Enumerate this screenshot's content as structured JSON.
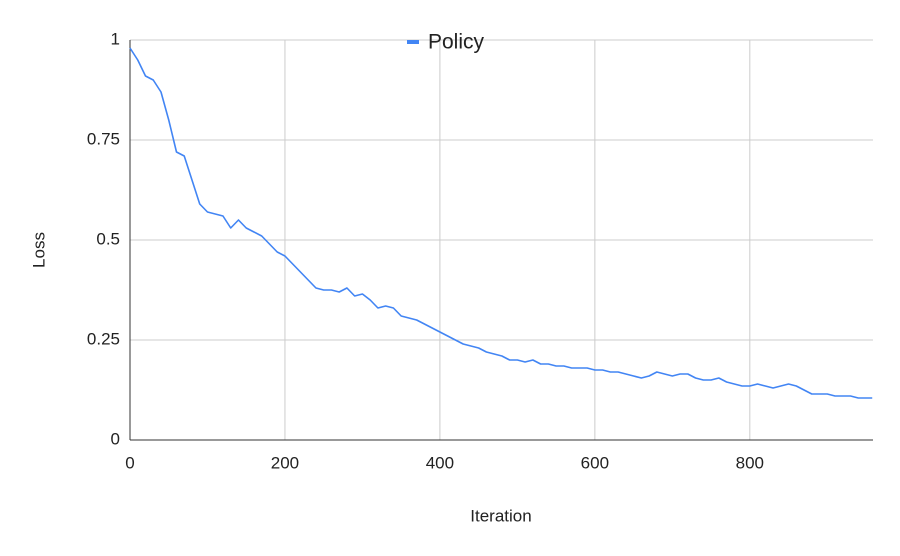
{
  "chart_data": {
    "type": "line",
    "x_label": "Iteration",
    "y_label": "Loss",
    "x": [
      0,
      10,
      20,
      30,
      40,
      50,
      60,
      70,
      80,
      90,
      100,
      110,
      120,
      130,
      140,
      150,
      160,
      170,
      180,
      190,
      200,
      210,
      220,
      230,
      240,
      250,
      260,
      270,
      280,
      290,
      300,
      310,
      320,
      330,
      340,
      350,
      360,
      370,
      380,
      390,
      400,
      410,
      420,
      430,
      440,
      450,
      460,
      470,
      480,
      490,
      500,
      510,
      520,
      530,
      540,
      550,
      560,
      570,
      580,
      590,
      600,
      610,
      620,
      630,
      640,
      650,
      660,
      670,
      680,
      690,
      700,
      710,
      720,
      730,
      740,
      750,
      760,
      770,
      780,
      790,
      800,
      810,
      820,
      830,
      840,
      850,
      860,
      870,
      880,
      890,
      900,
      910,
      920,
      930,
      940,
      950,
      958
    ],
    "series": [
      {
        "name": "Policy",
        "color": "#4285f4",
        "values": [
          0.98,
          0.95,
          0.91,
          0.9,
          0.87,
          0.8,
          0.72,
          0.71,
          0.65,
          0.59,
          0.57,
          0.565,
          0.56,
          0.53,
          0.55,
          0.53,
          0.52,
          0.51,
          0.49,
          0.47,
          0.46,
          0.44,
          0.42,
          0.4,
          0.38,
          0.375,
          0.375,
          0.37,
          0.38,
          0.36,
          0.365,
          0.35,
          0.33,
          0.335,
          0.33,
          0.31,
          0.305,
          0.3,
          0.29,
          0.28,
          0.27,
          0.26,
          0.25,
          0.24,
          0.235,
          0.23,
          0.22,
          0.215,
          0.21,
          0.2,
          0.2,
          0.195,
          0.2,
          0.19,
          0.19,
          0.185,
          0.185,
          0.18,
          0.18,
          0.18,
          0.175,
          0.175,
          0.17,
          0.17,
          0.165,
          0.16,
          0.155,
          0.16,
          0.17,
          0.165,
          0.16,
          0.165,
          0.165,
          0.155,
          0.15,
          0.15,
          0.155,
          0.145,
          0.14,
          0.135,
          0.135,
          0.14,
          0.135,
          0.13,
          0.135,
          0.14,
          0.135,
          0.125,
          0.115,
          0.115,
          0.115,
          0.11,
          0.11,
          0.11,
          0.105,
          0.105,
          0.105
        ]
      }
    ],
    "xlim": [
      0,
      959
    ],
    "ylim": [
      0,
      1
    ],
    "xticks": [
      0,
      200,
      400,
      600,
      800
    ],
    "yticks": [
      0,
      0.25,
      0.5,
      0.75,
      1
    ],
    "grid": true,
    "legend": "top"
  }
}
